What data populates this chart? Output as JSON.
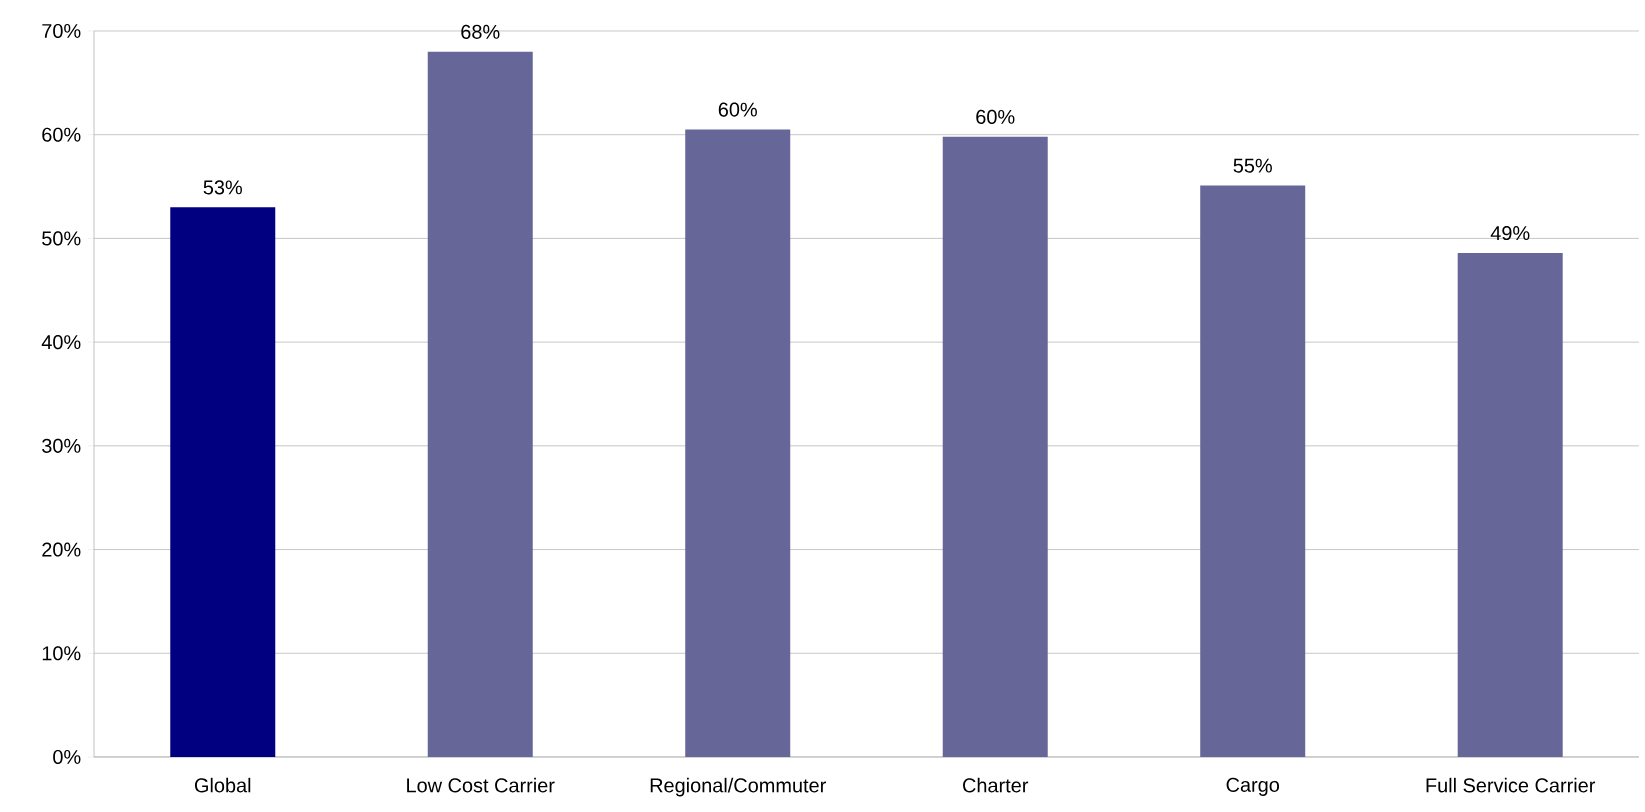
{
  "chart_data": {
    "type": "bar",
    "categories": [
      "Global",
      "Low Cost Carrier",
      "Regional/Commuter",
      "Charter",
      "Cargo",
      "Full Service Carrier"
    ],
    "values": [
      53,
      68,
      60.5,
      59.8,
      55.1,
      48.6
    ],
    "value_labels": [
      "53%",
      "68%",
      "60%",
      "60%",
      "55%",
      "49%"
    ],
    "colors": [
      "#000080",
      "#666699",
      "#666699",
      "#666699",
      "#666699",
      "#666699"
    ],
    "ylim": [
      0,
      70
    ],
    "yticks": [
      {
        "value": 0,
        "label": "0%"
      },
      {
        "value": 10,
        "label": "10%"
      },
      {
        "value": 20,
        "label": "20%"
      },
      {
        "value": 30,
        "label": "30%"
      },
      {
        "value": 40,
        "label": "40%"
      },
      {
        "value": 50,
        "label": "50%"
      },
      {
        "value": 60,
        "label": "60%"
      },
      {
        "value": 70,
        "label": "70%"
      }
    ],
    "grid": "y"
  }
}
